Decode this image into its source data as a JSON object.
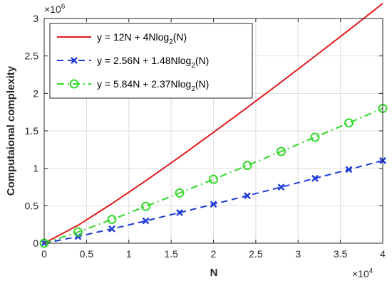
{
  "chart_data": {
    "type": "line",
    "xlabel": "N",
    "ylabel": "Computaional complexity",
    "x_exponent_label": "×10",
    "x_exponent_power": "4",
    "y_exponent_label": "×10",
    "y_exponent_power": "6",
    "xlim": [
      0,
      40000
    ],
    "ylim": [
      0,
      3000000
    ],
    "x_ticks": [
      0,
      4000,
      8000,
      12000,
      16000,
      20000,
      24000,
      28000,
      32000,
      36000,
      40000
    ],
    "x_tick_labels": [
      "0",
      "0.5",
      "1",
      "1.5",
      "2",
      "2.5",
      "3",
      "3.5",
      "4"
    ],
    "x_tick_values": [
      0,
      5000,
      10000,
      15000,
      20000,
      25000,
      30000,
      35000,
      40000
    ],
    "y_tick_values": [
      0,
      500000,
      1000000,
      1500000,
      2000000,
      2500000,
      3000000
    ],
    "y_tick_labels": [
      "0",
      "0.5",
      "1",
      "1.5",
      "2",
      "2.5",
      "3"
    ],
    "grid": true,
    "legend_position": "top-left",
    "x": [
      0,
      4000,
      8000,
      12000,
      16000,
      20000,
      24000,
      28000,
      32000,
      36000,
      40000
    ],
    "series": [
      {
        "legend_prefix": "y = 12N + 4Nlog",
        "legend_sub": "2",
        "legend_suffix": "(N)",
        "color": "#e31a1c",
        "style": "solid",
        "marker": "none",
        "values": [
          0,
          239000,
          528000,
          834000,
          1152000,
          1479000,
          1812000,
          2152000,
          2497000,
          2846000,
          3200000
        ]
      },
      {
        "legend_prefix": "y = 2.56N + 1.48Nlog",
        "legend_sub": "2",
        "legend_suffix": "(N)",
        "color": "#1f3bd8",
        "style": "dashed",
        "marker": "x",
        "values": [
          0,
          89000,
          191000,
          298000,
          408000,
          520000,
          634000,
          749000,
          866000,
          984000,
          1103000
        ]
      },
      {
        "legend_prefix": "y = 5.84N + 2.37Nlog",
        "legend_sub": "2",
        "legend_suffix": "(N)",
        "color": "#33d92b",
        "style": "dashdot",
        "marker": "o",
        "values": [
          0,
          149000,
          317000,
          491000,
          670000,
          853000,
          1038000,
          1225000,
          1415000,
          1606000,
          1799000
        ]
      }
    ]
  }
}
